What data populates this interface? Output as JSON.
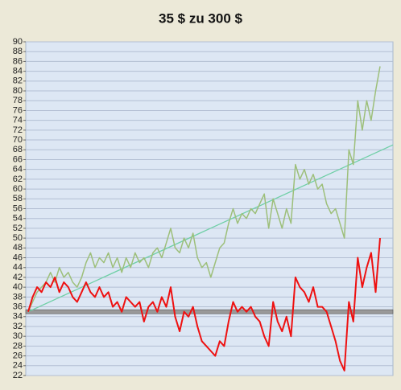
{
  "chart_data": {
    "type": "line",
    "title": "35 $ zu 300 $",
    "categories": [
      null,
      null,
      null,
      null,
      null,
      null,
      null,
      null,
      null,
      null,
      null,
      null,
      null,
      null,
      null,
      null,
      null,
      null,
      null,
      null,
      null,
      null,
      null,
      null,
      null,
      null,
      null,
      null,
      null,
      null,
      null,
      null,
      null,
      null,
      null,
      null,
      null,
      null,
      null,
      null,
      null,
      null,
      null,
      null,
      null,
      null,
      null,
      null,
      null,
      null,
      null,
      null,
      null,
      null,
      null,
      null,
      null,
      null,
      null,
      null,
      null,
      null,
      null,
      null,
      null,
      null,
      null,
      null,
      null,
      null,
      null,
      null,
      null,
      null,
      null,
      null,
      null,
      null,
      null,
      null
    ],
    "series": [
      {
        "color": "#9dbf7a",
        "values": [
          35,
          37,
          39,
          40,
          41,
          43,
          41,
          44,
          42,
          43,
          41,
          40,
          42,
          45,
          47,
          44,
          46,
          45,
          47,
          44,
          46,
          43,
          46,
          44,
          47,
          45,
          46,
          44,
          47,
          48,
          46,
          49,
          52,
          48,
          47,
          50,
          48,
          51,
          46,
          44,
          45,
          42,
          45,
          48,
          49,
          53,
          56,
          53,
          55,
          54,
          56,
          55,
          57,
          59,
          52,
          58,
          55,
          52,
          56,
          53,
          65,
          62,
          64,
          61,
          63,
          60,
          61,
          57,
          55,
          56,
          53,
          50,
          68,
          65,
          78,
          72,
          78,
          74,
          80,
          85
        ]
      },
      {
        "color": "#ee1111",
        "values": [
          35,
          38,
          40,
          39,
          41,
          40,
          42,
          39,
          41,
          40,
          38,
          37,
          39,
          41,
          39,
          38,
          40,
          38,
          39,
          36,
          37,
          35,
          38,
          37,
          36,
          37,
          33,
          36,
          37,
          35,
          38,
          36,
          40,
          34,
          31,
          35,
          34,
          36,
          32,
          29,
          28,
          27,
          26,
          29,
          28,
          33,
          37,
          35,
          36,
          35,
          36,
          34,
          33,
          30,
          28,
          37,
          33,
          31,
          34,
          30,
          42,
          40,
          39,
          37,
          40,
          36,
          36,
          35,
          32,
          29,
          25,
          23,
          37,
          33,
          46,
          40,
          44,
          47,
          39,
          50
        ]
      }
    ],
    "trend": {
      "color": "#6fcfa6",
      "values": [
        35,
        69
      ]
    },
    "reference_line": {
      "color": "#999999",
      "value": 35
    },
    "ylim": [
      22,
      90
    ],
    "yticks": [
      22,
      24,
      26,
      28,
      30,
      32,
      34,
      36,
      38,
      40,
      42,
      44,
      46,
      48,
      50,
      52,
      54,
      56,
      58,
      60,
      62,
      64,
      66,
      68,
      70,
      72,
      74,
      76,
      78,
      80,
      82,
      84,
      86,
      88,
      90
    ],
    "grid": true
  }
}
